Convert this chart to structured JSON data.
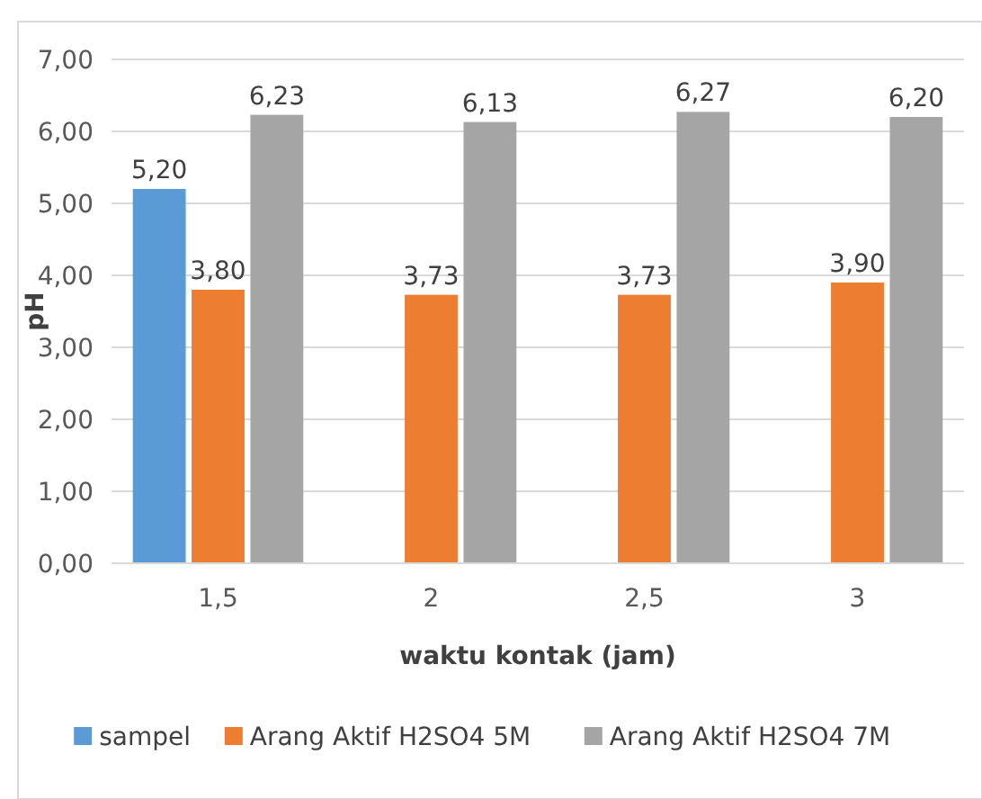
{
  "chart_data": {
    "type": "bar",
    "xlabel": "waktu kontak (jam)",
    "ylabel": "pH",
    "categories": [
      "1,5",
      "2",
      "2,5",
      "3"
    ],
    "series": [
      {
        "name": "sampel",
        "color": "#5b9bd5",
        "values": [
          5.2,
          null,
          null,
          null
        ],
        "value_labels": [
          "5,20",
          null,
          null,
          null
        ]
      },
      {
        "name": "Arang Aktif H2SO4 5M",
        "color": "#ed7d31",
        "values": [
          3.8,
          3.73,
          3.73,
          3.9
        ],
        "value_labels": [
          "3,80",
          "3,73",
          "3,73",
          "3,90"
        ]
      },
      {
        "name": "Arang Aktif H2SO4 7M",
        "color": "#a5a5a5",
        "values": [
          6.23,
          6.13,
          6.27,
          6.2
        ],
        "value_labels": [
          "6,23",
          "6,13",
          "6,27",
          "6,20"
        ]
      }
    ],
    "ylim": [
      0,
      7
    ],
    "yticks": [
      {
        "value": 0,
        "label": "0,00"
      },
      {
        "value": 1,
        "label": "1,00"
      },
      {
        "value": 2,
        "label": "2,00"
      },
      {
        "value": 3,
        "label": "3,00"
      },
      {
        "value": 4,
        "label": "4,00"
      },
      {
        "value": 5,
        "label": "5,00"
      },
      {
        "value": 6,
        "label": "6,00"
      },
      {
        "value": 7,
        "label": "7,00"
      }
    ],
    "grid": "y",
    "legend": "bottom"
  }
}
